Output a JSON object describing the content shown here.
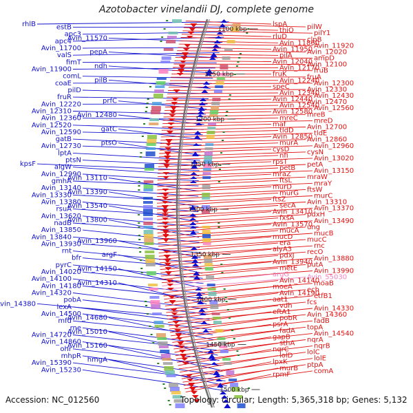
{
  "title": "Azotobacter vinelandii DJ, complete genome",
  "footer": {
    "accession": "Accession: NC_012560",
    "stats": "Topology: circular; Length: 5,365,318 bp; Genes: 5,132"
  },
  "colors": {
    "forward_strand": "#e01010",
    "reverse_strand": "#1010d0",
    "rna_gene": "#f080c0",
    "backbone": "#808080",
    "tick": "#208020"
  },
  "scale_labels": [
    "1100 kbp",
    "1150 kbp",
    "1200 kbp",
    "1250 kbp",
    "1300 kbp",
    "1350 kbp",
    "1400 kbp",
    "1450 kbp",
    "1500 kbp"
  ],
  "left_genes": [
    "rhlB",
    "estB",
    "apc3",
    "apc4",
    "Avin_11570",
    "Avin_11700",
    "valS",
    "pepA",
    "fimT",
    "Avin_11900",
    "ndh",
    "comL",
    "coaE",
    "pilB",
    "pilD",
    "fruR",
    "Avin_12220",
    "prfC",
    "Avin_12310",
    "Avin_12360",
    "Avin_12480",
    "Avin_12520",
    "Avin_12590",
    "gatC",
    "gatB",
    "Avin_12730",
    "ptsO",
    "lptA",
    "ptsN",
    "kpsF",
    "algW",
    "Avin_12990",
    "gmhA",
    "Avin_13110",
    "Avin_13140",
    "Avin_13330",
    "Avin_13390",
    "Avin_13380",
    "rsuA",
    "Avin_13540",
    "Avin_13620",
    "nadB",
    "Avin_13800",
    "Avin_13850",
    "Avin_13840",
    "Avin_13930",
    "Avin_13960",
    "rnt",
    "bfr",
    "argF",
    "pyrC",
    "Avin_14020",
    "Avin_14150",
    "Avin_14100",
    "Avin_14180",
    "Avin_14310",
    "Avin_14320",
    "pobA",
    "Avin_14380",
    "lexA",
    "Avin_14500",
    "mfd",
    "Avin_14680",
    "rne",
    "Avin_14720",
    "Avin_15010",
    "Avin_14860",
    "ohr",
    "Avin_15160",
    "mhpR",
    "Avin_15390",
    "hmgA",
    "Avin_15230"
  ],
  "right_genes": [
    "lspA",
    "pilW",
    "thiO",
    "pilY1",
    "rluD",
    "clpB",
    "Avin_11860",
    "Avin_11920",
    "Avin_11950",
    "Avin_12020",
    "pilA",
    "ampD",
    "Avin_12040",
    "Avin_12100",
    "Avin_12170",
    "fruB",
    "fruK",
    "fruA",
    "Avin_12240",
    "Avin_12300",
    "speC",
    "Avin_12330",
    "Avin_12340",
    "Avin_12430",
    "Avin_12440",
    "Avin_12470",
    "Avin_12540",
    "Avin_12560",
    "Avin_12580",
    "mreB",
    "mreC",
    "mreD",
    "maf",
    "Avin_12700",
    "tldD",
    "tldE",
    "Avin_12850",
    "Avin_12860",
    "murA",
    "Avin_12960",
    "cysD",
    "cysN",
    "nfi",
    "Avin_13020",
    "rpsT",
    "petA",
    "petB",
    "Avin_13150",
    "mraZ",
    "mraW",
    "ftsL",
    "mraY",
    "murD",
    "ftsW",
    "murG",
    "murC",
    "ftsZ",
    "Avin_13310",
    "secA",
    "Avin_13370",
    "Avin_13410",
    "pdxH",
    "fxsA",
    "Avin_13490",
    "Avin_13570",
    "ung",
    "mucA",
    "mucB",
    "mucD",
    "mucC",
    "era",
    "rnc",
    "alyA3",
    "recO",
    "pdxJ",
    "Avin_13880",
    "Avin_13940",
    "putA",
    "metE",
    "Avin_13990",
    "argG",
    "Avin_55030",
    "Avin_14140",
    "moaB",
    "moeA",
    "ech",
    "Avin_14190",
    "etfB1",
    "aat1",
    "fcs",
    "vdh",
    "Avin_14330",
    "eftA1",
    "Avin_14360",
    "pobR",
    "fadB",
    "psrA",
    "topA",
    "fadA",
    "Avin_14540",
    "gapB",
    "nqrA",
    "sthA",
    "nqrB",
    "nqrC",
    "lolC",
    "lolD",
    "lolE",
    "lpxK",
    "ptpA",
    "murB",
    "comA",
    "rpmF"
  ],
  "rna_genes": [
    "argG",
    "Avin_55030"
  ]
}
